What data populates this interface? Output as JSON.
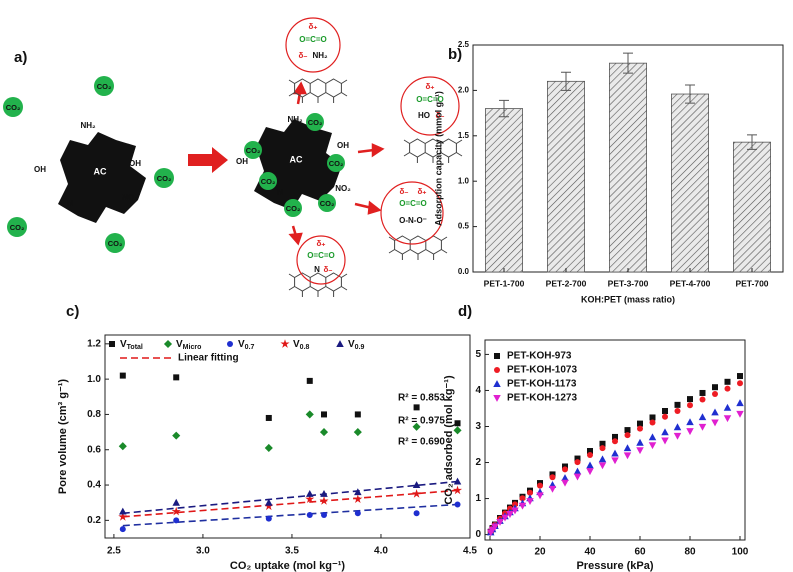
{
  "diagram": {
    "panel_label": "a)",
    "co2": "CO₂",
    "ac": "AC",
    "nh2": "NH₂",
    "oh": "OH",
    "no2": "NO₂",
    "n": "N",
    "ho": "HO",
    "delta_plus": "δ₊",
    "delta_minus": "δ₋",
    "o_c_o": "O=C=O",
    "o_n_o": "O-N-O⁻"
  },
  "chart_data": [
    {
      "type": "bar",
      "panel_label": "b)",
      "categories": [
        "PET-1-700",
        "PET-2-700",
        "PET-3-700",
        "PET-4-700",
        "PET-700"
      ],
      "values": [
        1.8,
        2.1,
        2.3,
        1.96,
        1.43
      ],
      "errors": [
        0.09,
        0.1,
        0.11,
        0.1,
        0.08
      ],
      "color": "#555555",
      "ylim": [
        0,
        2.5
      ],
      "yticks": [
        {
          "value": 0,
          "label": "0.0"
        },
        0.5,
        {
          "value": 1,
          "label": "1.0"
        },
        1.5,
        {
          "value": 2,
          "label": "2.0"
        },
        2.5
      ],
      "x_label": "KOH:PET (mass ratio)",
      "y_label": "Adsorption capacity (mmol g⁻¹)"
    },
    {
      "type": "scatter",
      "panel_label": "c)",
      "x": [
        2.55,
        2.85,
        3.37,
        3.6,
        3.68,
        3.87,
        4.2,
        4.43
      ],
      "series": [
        {
          "name": "V",
          "subscript": "Total",
          "color": "#111111",
          "marker": "square",
          "values": [
            1.02,
            1.01,
            0.78,
            0.99,
            0.8,
            0.8,
            0.84,
            0.75
          ]
        },
        {
          "name": "V",
          "subscript": "Micro",
          "color": "#1a8a2a",
          "marker": "diamond",
          "values": [
            0.62,
            0.68,
            0.61,
            0.8,
            0.7,
            0.7,
            0.73,
            0.71
          ]
        },
        {
          "name": "V",
          "subscript": "0.7",
          "color": "#1f2fd0",
          "marker": "circle",
          "values": [
            0.15,
            0.2,
            0.21,
            0.23,
            0.23,
            0.24,
            0.24,
            0.29
          ]
        },
        {
          "name": "V",
          "subscript": "0.8",
          "color": "#e01818",
          "marker": "star",
          "values": [
            0.22,
            0.25,
            0.28,
            0.32,
            0.31,
            0.32,
            0.35,
            0.37
          ]
        },
        {
          "name": "V",
          "subscript": "0.9",
          "color": "#1a1a80",
          "marker": "triangle",
          "values": [
            0.25,
            0.3,
            0.3,
            0.35,
            0.35,
            0.36,
            0.4,
            0.42
          ]
        }
      ],
      "fit_label": "Linear fitting",
      "fits": [
        {
          "label": "R² = 0.853",
          "color": "#1a1a80",
          "x": [
            2.55,
            4.43
          ],
          "values": [
            0.24,
            0.42
          ]
        },
        {
          "label": "R² = 0.975",
          "color": "#e01818",
          "x": [
            2.55,
            4.43
          ],
          "values": [
            0.22,
            0.37
          ]
        },
        {
          "label": "R² = 0.690",
          "color": "#1f2fa0",
          "x": [
            2.55,
            4.43
          ],
          "values": [
            0.17,
            0.29
          ]
        }
      ],
      "xlim": [
        2.45,
        4.5
      ],
      "xticks": [
        2.5,
        {
          "value": 3,
          "label": "3.0"
        },
        3.5,
        {
          "value": 4,
          "label": "4.0"
        },
        4.5
      ],
      "ylim": [
        0.1,
        1.25
      ],
      "yticks": [
        0.2,
        0.4,
        0.6,
        0.8,
        {
          "value": 1,
          "label": "1.0"
        },
        1.2
      ],
      "x_label": "CO₂ uptake (mol kg⁻¹)",
      "y_label": "Pore volume (cm³ g⁻¹)"
    },
    {
      "type": "scatter",
      "panel_label": "d)",
      "x": [
        0.3,
        1,
        2,
        4,
        6,
        8,
        10,
        13,
        16,
        20,
        25,
        30,
        35,
        40,
        45,
        50,
        55,
        60,
        65,
        70,
        75,
        80,
        85,
        90,
        95,
        100
      ],
      "series": [
        {
          "name": "PET-KOH-973",
          "color": "#111111",
          "marker": "square",
          "values": [
            0.08,
            0.18,
            0.28,
            0.46,
            0.61,
            0.75,
            0.88,
            1.05,
            1.22,
            1.43,
            1.67,
            1.89,
            2.11,
            2.32,
            2.52,
            2.71,
            2.9,
            3.08,
            3.25,
            3.43,
            3.6,
            3.76,
            3.93,
            4.09,
            4.24,
            4.4
          ]
        },
        {
          "name": "PET-KOH-1073",
          "color": "#ee1c24",
          "marker": "circle",
          "values": [
            0.07,
            0.17,
            0.27,
            0.44,
            0.59,
            0.72,
            0.84,
            1.01,
            1.16,
            1.36,
            1.59,
            1.81,
            2.01,
            2.21,
            2.4,
            2.59,
            2.76,
            2.94,
            3.11,
            3.27,
            3.43,
            3.59,
            3.75,
            3.9,
            4.05,
            4.2
          ]
        },
        {
          "name": "PET-KOH-1173",
          "color": "#1f2fd0",
          "marker": "triangle",
          "values": [
            0.06,
            0.15,
            0.24,
            0.38,
            0.51,
            0.62,
            0.73,
            0.87,
            1.01,
            1.18,
            1.38,
            1.57,
            1.75,
            1.92,
            2.09,
            2.25,
            2.4,
            2.55,
            2.7,
            2.84,
            2.98,
            3.12,
            3.26,
            3.39,
            3.52,
            3.65
          ]
        },
        {
          "name": "PET-KOH-1273",
          "color": "#e020d0",
          "marker": "triangle-down",
          "values": [
            0.06,
            0.13,
            0.22,
            0.35,
            0.47,
            0.57,
            0.67,
            0.8,
            0.93,
            1.09,
            1.27,
            1.44,
            1.61,
            1.76,
            1.92,
            2.06,
            2.2,
            2.34,
            2.48,
            2.61,
            2.74,
            2.87,
            2.99,
            3.11,
            3.23,
            3.35
          ]
        }
      ],
      "xlim": [
        -2,
        102
      ],
      "xticks": [
        0,
        20,
        40,
        60,
        80,
        100
      ],
      "ylim": [
        -0.15,
        5.4
      ],
      "yticks": [
        0,
        1,
        2,
        3,
        4,
        5
      ],
      "x_label": "Pressure (kPa)",
      "y_label": "CO₂ adsorbed (mol kg⁻¹)"
    }
  ]
}
